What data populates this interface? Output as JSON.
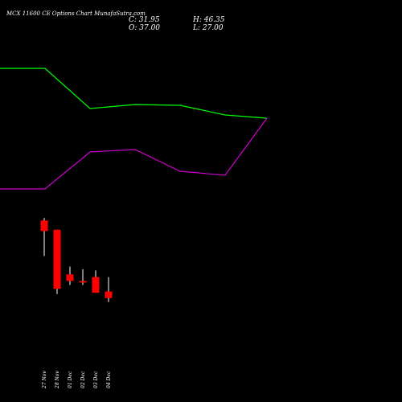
{
  "title": "MCX 11600 CE Options Chart MunafaSutra.com",
  "ohlc": {
    "close_label": "C: 31.95",
    "high_label": "H: 46.35",
    "open_label": "O: 37.00",
    "low_label": "L: 27.00"
  },
  "colors": {
    "background": "#000000",
    "upper_line": "#00ff00",
    "lower_line": "#cc00cc",
    "candle": "#ff0000",
    "wick": "#ffffff",
    "text": "#ffffff"
  },
  "chart_data": {
    "type": "candlestick",
    "dates": [
      "27 Nov",
      "28 Nov",
      "01 Dec",
      "02 Dec",
      "03 Dec",
      "04 Dec"
    ],
    "candles": [
      {
        "open": 100,
        "high": 102,
        "low": 73,
        "close": 92
      },
      {
        "open": 93,
        "high": 93,
        "low": 44,
        "close": 48
      },
      {
        "open": 59,
        "high": 65,
        "low": 51,
        "close": 54
      },
      {
        "open": 54,
        "high": 63,
        "low": 51,
        "close": 53
      },
      {
        "open": 57,
        "high": 62,
        "low": 45,
        "close": 45
      },
      {
        "open": 46,
        "high": 57,
        "low": 38,
        "close": 41
      }
    ],
    "price_range": [
      20,
      110
    ],
    "upper_line": {
      "x": [
        0,
        56,
        112,
        168,
        224,
        280,
        332
      ],
      "y": [
        85,
        85,
        135,
        130,
        131,
        143,
        147
      ]
    },
    "lower_line": {
      "x": [
        0,
        56,
        112,
        168,
        224,
        280,
        332
      ],
      "y": [
        235,
        235,
        189,
        186,
        213,
        218,
        147
      ]
    }
  }
}
